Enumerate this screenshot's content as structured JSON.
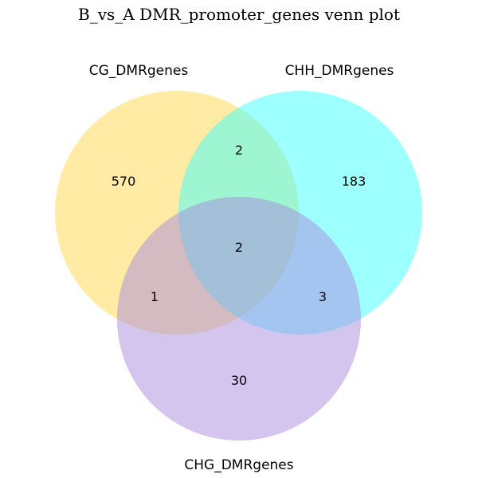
{
  "title": "B_vs_A DMR_promoter_genes venn plot",
  "sets": [
    {
      "id": "cg",
      "label": "CG_DMRgenes",
      "color": "#FFD84A"
    },
    {
      "id": "chh",
      "label": "CHH_DMRgenes",
      "color": "#3DFFFF"
    },
    {
      "id": "chg",
      "label": "CHG_DMRgenes",
      "color": "#A98BE0"
    }
  ],
  "fill_opacity": 0.5,
  "regions": {
    "cg_only": "570",
    "chh_only": "183",
    "chg_only": "30",
    "cg_chh": "2",
    "cg_chg": "1",
    "chh_chg": "3",
    "all": "2"
  }
}
